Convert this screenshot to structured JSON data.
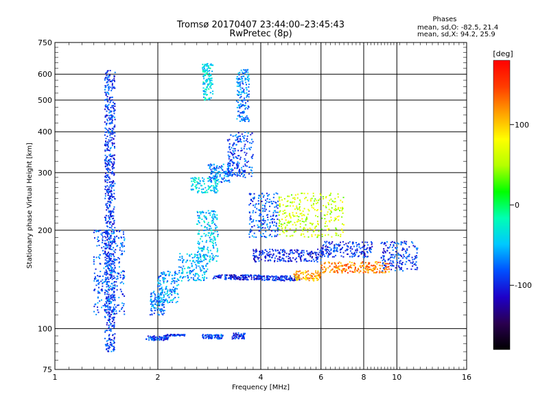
{
  "header": {
    "title": "Tromsø 20170407 23:44:00–23:45:43",
    "subtitle": "RwPretec (8p)",
    "phases_title": "Phases",
    "phases_o": "mean, sd,O: -82.5, 21.4",
    "phases_x": "mean, sd,X:  94.2, 25.9"
  },
  "colorbar": {
    "unit": "[deg]",
    "ticks": [
      "100",
      "0",
      "-100"
    ],
    "tick_values": [
      100,
      0,
      -100
    ],
    "range": [
      -180,
      180
    ],
    "colors": [
      "#000000",
      "#2a0050",
      "#1e00c8",
      "#0050ff",
      "#00c8ff",
      "#00ffb4",
      "#00ff00",
      "#b4ff00",
      "#ffff00",
      "#ffa000",
      "#ff3c00",
      "#ff0000"
    ]
  },
  "chart_data": {
    "type": "scatter",
    "title": "Tromsø 20170407 23:44:00–23:45:43",
    "subtitle": "RwPretec (8p)",
    "xlabel": "Frequency [MHz]",
    "ylabel": "Stationary phase Virtual Height [km]",
    "x_scale": "log",
    "y_scale": "log",
    "xlim": [
      1,
      16
    ],
    "ylim": [
      75,
      750
    ],
    "x_ticks": [
      1,
      2,
      4,
      6,
      8,
      10,
      16
    ],
    "x_tick_labels": [
      "1",
      "2",
      "4",
      "6",
      "8",
      "10",
      "16"
    ],
    "y_ticks": [
      75,
      100,
      200,
      300,
      400,
      500,
      600,
      750
    ],
    "y_tick_labels": [
      "75",
      "100",
      "200",
      "300",
      "400",
      "500",
      "600",
      "750"
    ],
    "grid": true,
    "color_variable": "phase [deg]",
    "clusters": [
      {
        "desc": "low E-layer trace",
        "x": [
          1.85,
          2.15
        ],
        "y": [
          92,
          95
        ],
        "phase": -90
      },
      {
        "desc": "E-layer scatter",
        "x": [
          2.1,
          2.4
        ],
        "y": [
          95,
          96
        ],
        "phase": -95
      },
      {
        "desc": "E-layer scatter",
        "x": [
          2.7,
          3.1
        ],
        "y": [
          93,
          96
        ],
        "phase": -85
      },
      {
        "desc": "E-layer scatter",
        "x": [
          3.3,
          3.6
        ],
        "y": [
          93,
          97
        ],
        "phase": -100
      },
      {
        "desc": "Es rising",
        "x": [
          1.9,
          2.1
        ],
        "y": [
          110,
          130
        ],
        "phase": -70
      },
      {
        "desc": "Es rising",
        "x": [
          2.0,
          2.3
        ],
        "y": [
          120,
          150
        ],
        "phase": -60
      },
      {
        "desc": "F1 trace",
        "x": [
          2.3,
          2.8
        ],
        "y": [
          140,
          170
        ],
        "phase": -55
      },
      {
        "desc": "F1 scatter",
        "x": [
          2.6,
          3.0
        ],
        "y": [
          160,
          230
        ],
        "phase": -50
      },
      {
        "desc": "O-trace horizontal",
        "x": [
          2.9,
          4.0
        ],
        "y": [
          141,
          146
        ],
        "phase": -100
      },
      {
        "desc": "O-trace horizontal",
        "x": [
          4.0,
          5.2
        ],
        "y": [
          140,
          145
        ],
        "phase": -95
      },
      {
        "desc": "X-trace",
        "x": [
          5.0,
          6.0
        ],
        "y": [
          140,
          150
        ],
        "phase": 110
      },
      {
        "desc": "X-trace",
        "x": [
          6.0,
          9.5
        ],
        "y": [
          148,
          160
        ],
        "phase": 125
      },
      {
        "desc": "upper trace",
        "x": [
          3.8,
          6.0
        ],
        "y": [
          160,
          175
        ],
        "phase": -100
      },
      {
        "desc": "upper trace",
        "x": [
          6.0,
          8.5
        ],
        "y": [
          165,
          185
        ],
        "phase": -95
      },
      {
        "desc": "far scatter",
        "x": [
          9.0,
          11.5
        ],
        "y": [
          150,
          185
        ],
        "phase": -90
      },
      {
        "desc": "F-region spread",
        "x": [
          2.5,
          3.0
        ],
        "y": [
          260,
          290
        ],
        "phase": -40
      },
      {
        "desc": "F-region spread",
        "x": [
          2.8,
          3.3
        ],
        "y": [
          280,
          320
        ],
        "phase": -70
      },
      {
        "desc": "F-region spread",
        "x": [
          3.2,
          3.8
        ],
        "y": [
          290,
          400
        ],
        "phase": -85
      },
      {
        "desc": "F-region top",
        "x": [
          2.7,
          2.9
        ],
        "y": [
          500,
          650
        ],
        "phase": -40
      },
      {
        "desc": "F-region top",
        "x": [
          3.4,
          3.7
        ],
        "y": [
          430,
          620
        ],
        "phase": -70
      },
      {
        "desc": "mid scatter",
        "x": [
          3.7,
          4.5
        ],
        "y": [
          190,
          260
        ],
        "phase": -80
      },
      {
        "desc": "mid scatter",
        "x": [
          4.5,
          7.0
        ],
        "y": [
          190,
          260
        ],
        "phase": 60
      },
      {
        "desc": "left column",
        "x": [
          1.4,
          1.5
        ],
        "y": [
          85,
          620
        ],
        "phase": -90
      },
      {
        "desc": "left scatter",
        "x": [
          1.3,
          1.6
        ],
        "y": [
          110,
          200
        ],
        "phase": -80
      }
    ]
  }
}
